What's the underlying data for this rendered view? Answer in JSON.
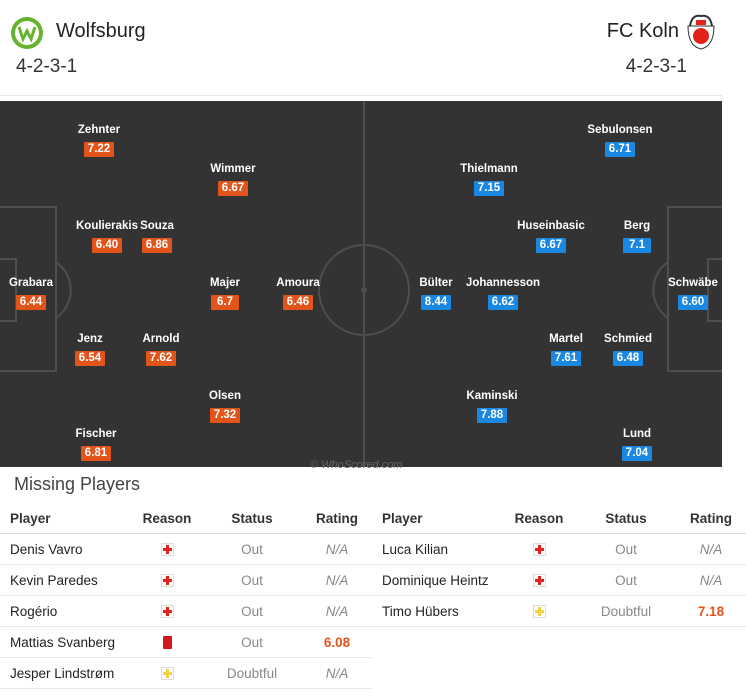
{
  "home": {
    "name": "Wolfsburg",
    "formation": "4-2-3-1",
    "color": "#e2541a"
  },
  "away": {
    "name": "FC Koln",
    "formation": "4-2-3-1",
    "color": "#1a87e2"
  },
  "home_players": [
    {
      "name": "Zehnter",
      "rating": "7.22"
    },
    {
      "name": "Wimmer",
      "rating": "6.67"
    },
    {
      "name": "Koulierakis",
      "rating": "6.40"
    },
    {
      "name": "Souza",
      "rating": "6.86"
    },
    {
      "name": "Grabara",
      "rating": "6.44"
    },
    {
      "name": "Majer",
      "rating": "6.7"
    },
    {
      "name": "Amoura",
      "rating": "6.46"
    },
    {
      "name": "Jenz",
      "rating": "6.54"
    },
    {
      "name": "Arnold",
      "rating": "7.62"
    },
    {
      "name": "Olsen",
      "rating": "7.32"
    },
    {
      "name": "Fischer",
      "rating": "6.81"
    }
  ],
  "away_players": [
    {
      "name": "Sebulonsen",
      "rating": "6.71"
    },
    {
      "name": "Thielmann",
      "rating": "7.15"
    },
    {
      "name": "Huseinbasic",
      "rating": "6.67"
    },
    {
      "name": "Berg",
      "rating": "7.1"
    },
    {
      "name": "Bülter",
      "rating": "8.44"
    },
    {
      "name": "Johannesson",
      "rating": "6.62"
    },
    {
      "name": "Schwäbe",
      "rating": "6.60"
    },
    {
      "name": "Martel",
      "rating": "7.61"
    },
    {
      "name": "Schmied",
      "rating": "6.48"
    },
    {
      "name": "Kaminski",
      "rating": "7.88"
    },
    {
      "name": "Lund",
      "rating": "7.04"
    }
  ],
  "watermark": "© WhoScored.com",
  "missing": {
    "title": "Missing Players",
    "headers": {
      "player": "Player",
      "reason": "Reason",
      "status": "Status",
      "rating": "Rating"
    },
    "home": [
      {
        "player": "Denis Vavro",
        "reason": "injury",
        "status": "Out",
        "rating": "N/A"
      },
      {
        "player": "Kevin Paredes",
        "reason": "injury",
        "status": "Out",
        "rating": "N/A"
      },
      {
        "player": "Rogério",
        "reason": "injury",
        "status": "Out",
        "rating": "N/A"
      },
      {
        "player": "Mattias Svanberg",
        "reason": "red-card",
        "status": "Out",
        "rating": "6.08"
      },
      {
        "player": "Jesper Lindstrøm",
        "reason": "doubtful",
        "status": "Doubtful",
        "rating": "N/A"
      }
    ],
    "away": [
      {
        "player": "Luca Kilian",
        "reason": "injury",
        "status": "Out",
        "rating": "N/A"
      },
      {
        "player": "Dominique Heintz",
        "reason": "injury",
        "status": "Out",
        "rating": "N/A"
      },
      {
        "player": "Timo Hübers",
        "reason": "doubtful",
        "status": "Doubtful",
        "rating": "7.18"
      }
    ]
  }
}
